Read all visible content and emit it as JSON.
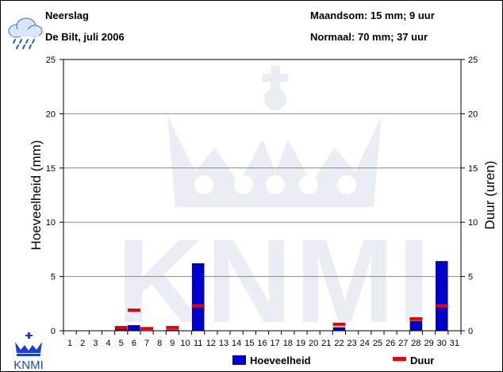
{
  "header": {
    "title": "Neerslag",
    "subtitle": "De Bilt, juli 2006",
    "month_total": "Maandsom: 15 mm; 9 uur",
    "normal": "Normaal: 70 mm; 37 uur"
  },
  "logo": {
    "text": "KNMI",
    "watermark": "KNMI"
  },
  "icons": {
    "weather": "rain-cloud-icon",
    "logo": "crown-logo-icon"
  },
  "colors": {
    "bar": "#0000cc",
    "duration": "#ee0000",
    "grid": "#888888",
    "watermark": "#e9edf3"
  },
  "chart_data": {
    "type": "bar",
    "categories": [
      "1",
      "2",
      "3",
      "4",
      "5",
      "6",
      "7",
      "8",
      "9",
      "10",
      "11",
      "12",
      "13",
      "14",
      "15",
      "16",
      "17",
      "18",
      "19",
      "20",
      "21",
      "22",
      "23",
      "24",
      "25",
      "26",
      "27",
      "28",
      "29",
      "30",
      "31"
    ],
    "series": [
      {
        "name": "Hoeveelheid",
        "kind": "bar",
        "values": [
          0,
          0,
          0,
          0,
          0.2,
          0.5,
          0,
          0,
          0.1,
          0,
          6.2,
          0,
          0,
          0,
          0,
          0,
          0,
          0,
          0,
          0,
          0,
          0.3,
          0,
          0,
          0,
          0,
          0,
          0.9,
          0,
          6.4,
          0
        ]
      },
      {
        "name": "Duur",
        "kind": "marker",
        "values": [
          0,
          0,
          0,
          0,
          0.3,
          1.9,
          0.2,
          0,
          0.3,
          0,
          2.3,
          0,
          0,
          0,
          0,
          0,
          0,
          0,
          0,
          0,
          0,
          0.6,
          0,
          0,
          0,
          0,
          0,
          1.1,
          0,
          2.3,
          0
        ]
      }
    ],
    "yticks": [
      "0",
      "5",
      "10",
      "15",
      "20",
      "25"
    ],
    "ylabel": "Hoeveelheid (mm)",
    "y2label": "Duur (uren)",
    "ylim": [
      0,
      25
    ],
    "y2lim": [
      0,
      25
    ],
    "grid": true,
    "legend": "bottom-right"
  }
}
